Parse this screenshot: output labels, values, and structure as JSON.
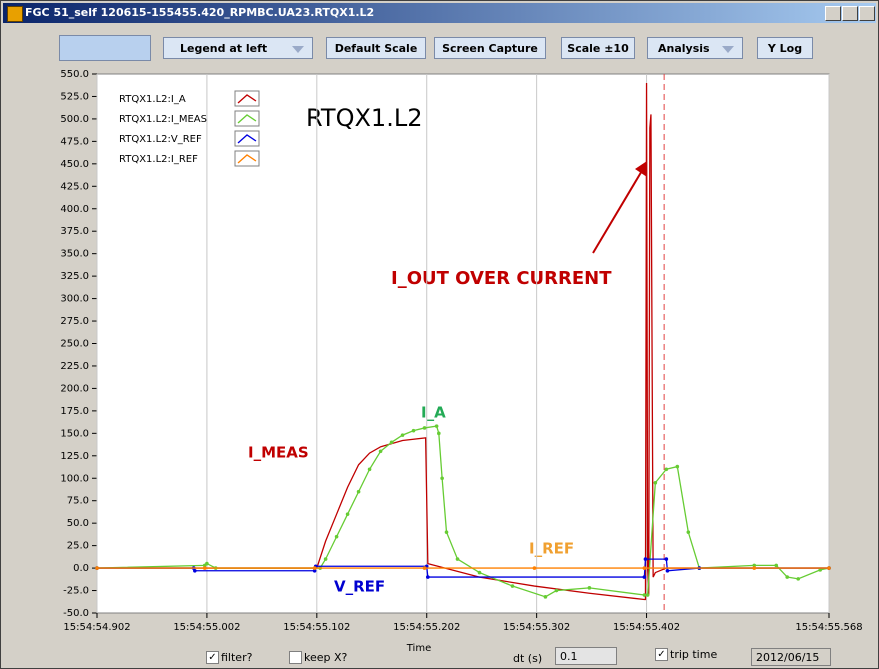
{
  "window": {
    "title": "FGC 51_self 120615-155455.420_RPMBC.UA23.RTQX1.L2"
  },
  "toolbar": {
    "buttons": [
      "Legend at left",
      "Default Scale",
      "Screen Capture",
      "Scale ±10",
      "Analysis",
      "Y Log"
    ]
  },
  "chart_data": {
    "type": "line",
    "title": "RTQX1.L2",
    "x_label": "Time",
    "xlim": [
      54.902,
      55.568
    ],
    "xticks": [
      {
        "value": 54.902,
        "label": "15:54:54.902"
      },
      {
        "value": 55.002,
        "label": "15:54:55.002"
      },
      {
        "value": 55.102,
        "label": "15:54:55.102"
      },
      {
        "value": 55.202,
        "label": "15:54:55.202"
      },
      {
        "value": 55.302,
        "label": "15:54:55.302"
      },
      {
        "value": 55.402,
        "label": "15:54:55.402"
      },
      {
        "value": 55.568,
        "label": "15:54:55.568"
      }
    ],
    "ylim": [
      -50,
      550
    ],
    "yticks": [
      {
        "value": 550,
        "label": "550.0"
      },
      {
        "value": 525,
        "label": "525.0"
      },
      {
        "value": 500,
        "label": "500.0"
      },
      {
        "value": 475,
        "label": "475.0"
      },
      {
        "value": 450,
        "label": "450.0"
      },
      {
        "value": 425,
        "label": "425.0"
      },
      {
        "value": 400,
        "label": "400.0"
      },
      {
        "value": 375,
        "label": "375.0"
      },
      {
        "value": 350,
        "label": "350.0"
      },
      {
        "value": 325,
        "label": "325.0"
      },
      {
        "value": 300,
        "label": "300.0"
      },
      {
        "value": 275,
        "label": "275.0"
      },
      {
        "value": 250,
        "label": "250.0"
      },
      {
        "value": 225,
        "label": "225.0"
      },
      {
        "value": 200,
        "label": "200.0"
      },
      {
        "value": 175,
        "label": "175.0"
      },
      {
        "value": 150,
        "label": "150.0"
      },
      {
        "value": 125,
        "label": "125.0"
      },
      {
        "value": 100,
        "label": "100.0"
      },
      {
        "value": 75,
        "label": "75.0"
      },
      {
        "value": 50,
        "label": "50.0"
      },
      {
        "value": 25,
        "label": "25.0"
      },
      {
        "value": 0,
        "label": "0.0"
      },
      {
        "value": -25,
        "label": "-25.0"
      },
      {
        "value": -50,
        "label": "-50.0"
      }
    ],
    "grid": true,
    "legend": "top-left",
    "trip_marker_x": 55.418,
    "series": [
      {
        "name": "RTQX1.L2:I_A",
        "color": "#c00000",
        "dots": false,
        "x": [
          54.902,
          55.102,
          55.11,
          55.12,
          55.13,
          55.14,
          55.15,
          55.16,
          55.18,
          55.201,
          55.203,
          55.25,
          55.3,
          55.35,
          55.4,
          55.401,
          55.402,
          55.403,
          55.404,
          55.405,
          55.406,
          55.408,
          55.41,
          55.42,
          55.45,
          55.568
        ],
        "values": [
          0,
          0,
          30,
          60,
          90,
          115,
          128,
          135,
          142,
          145,
          5,
          -10,
          -20,
          -28,
          -35,
          -35,
          540,
          0,
          -30,
          490,
          505,
          -10,
          -5,
          0,
          0,
          0
        ]
      },
      {
        "name": "RTQX1.L2:I_MEAS",
        "color": "#66cc33",
        "dots": true,
        "x": [
          54.902,
          55.0,
          55.002,
          55.01,
          55.105,
          55.11,
          55.12,
          55.13,
          55.14,
          55.15,
          55.16,
          55.17,
          55.18,
          55.19,
          55.2,
          55.211,
          55.213,
          55.216,
          55.22,
          55.23,
          55.25,
          55.28,
          55.31,
          55.32,
          55.35,
          55.4,
          55.403,
          55.41,
          55.42,
          55.43,
          55.44,
          55.45,
          55.5,
          55.52,
          55.53,
          55.54,
          55.56,
          55.568
        ],
        "values": [
          0,
          3,
          5,
          0,
          0,
          10,
          35,
          60,
          85,
          110,
          130,
          140,
          148,
          153,
          156,
          158,
          150,
          100,
          40,
          10,
          -5,
          -20,
          -32,
          -25,
          -22,
          -30,
          -30,
          95,
          110,
          113,
          40,
          0,
          3,
          3,
          -10,
          -12,
          -2,
          0
        ]
      },
      {
        "name": "RTQX1.L2:V_REF",
        "color": "#0000e0",
        "dots": true,
        "x": [
          54.902,
          54.99,
          54.991,
          55.1,
          55.101,
          55.202,
          55.203,
          55.4,
          55.401,
          55.42,
          55.421,
          55.45,
          55.568
        ],
        "values": [
          0,
          0,
          -3,
          -3,
          2,
          2,
          -10,
          -10,
          10,
          10,
          -3,
          0,
          0
        ]
      },
      {
        "name": "RTQX1.L2:I_REF",
        "color": "#ff8000",
        "dots": true,
        "x": [
          54.902,
          55.0,
          55.1,
          55.2,
          55.3,
          55.4,
          55.5,
          55.568
        ],
        "values": [
          0,
          0,
          0,
          0,
          0,
          0,
          0,
          0
        ]
      }
    ],
    "annotations": [
      "I_OUT OVER CURRENT",
      "I_MEAS",
      "I_A",
      "I_REF",
      "V_REF"
    ]
  },
  "controls": {
    "filter": {
      "label": "filter?",
      "checked": true
    },
    "keep_x": {
      "label": "keep X?",
      "checked": false
    },
    "dt_label": "dt (s)",
    "dt_value": "0.1",
    "trip_time": {
      "label": "trip time",
      "checked": true
    },
    "date": "2012/06/15"
  }
}
